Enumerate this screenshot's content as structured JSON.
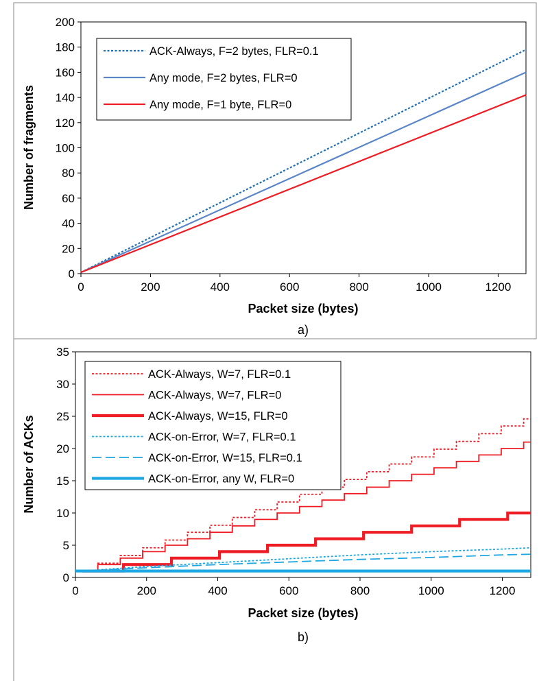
{
  "chart_data": [
    {
      "type": "line",
      "caption": "a)",
      "xlabel": "Packet size (bytes)",
      "ylabel": "Number of fragments",
      "xlim": [
        0,
        1280
      ],
      "ylim": [
        0,
        200
      ],
      "x_ticks": [
        0,
        200,
        400,
        600,
        800,
        1000,
        1200
      ],
      "y_ticks": [
        0,
        20,
        40,
        60,
        80,
        100,
        120,
        140,
        160,
        180,
        200
      ],
      "grid": false,
      "legend_position": "top-left",
      "series": [
        {
          "name": "ACK-Always, F=2 bytes, FLR=0.1",
          "color": "#1f6fb5",
          "dash": "dotted",
          "width": 2.2,
          "x": [
            0,
            1280
          ],
          "y": [
            1,
            178
          ]
        },
        {
          "name": "Any mode, F=2 bytes, FLR=0",
          "color": "#5a86c8",
          "dash": "solid",
          "width": 2.2,
          "x": [
            0,
            1280
          ],
          "y": [
            1,
            160
          ]
        },
        {
          "name": "Any mode, F=1 byte, FLR=0",
          "color": "#ee1c24",
          "dash": "solid",
          "width": 2.2,
          "x": [
            0,
            1280
          ],
          "y": [
            1,
            142
          ]
        }
      ]
    },
    {
      "type": "line",
      "caption": "b)",
      "xlabel": "Packet size (bytes)",
      "ylabel": "Number of ACKs",
      "xlim": [
        0,
        1280
      ],
      "ylim": [
        0,
        35
      ],
      "x_ticks": [
        0,
        200,
        400,
        600,
        800,
        1000,
        1200
      ],
      "y_ticks": [
        0,
        5,
        10,
        15,
        20,
        25,
        30,
        35
      ],
      "grid": false,
      "legend_position": "top-left",
      "series": [
        {
          "name": "ACK-Always, W=7, FLR=0.1",
          "color": "#ee1c24",
          "dash": "dotted",
          "width": 1.8,
          "step": true,
          "x": [
            20,
            63,
            126,
            189,
            252,
            315,
            378,
            441,
            504,
            567,
            630,
            693,
            756,
            819,
            882,
            945,
            1008,
            1071,
            1134,
            1197,
            1260,
            1280
          ],
          "y": [
            1,
            2.2,
            3.4,
            4.6,
            5.8,
            7.0,
            8.1,
            9.3,
            10.5,
            11.7,
            12.9,
            14.0,
            15.2,
            16.4,
            17.6,
            18.7,
            19.9,
            21.1,
            22.3,
            23.5,
            24.6,
            24.6
          ]
        },
        {
          "name": "ACK-Always, W=7, FLR=0",
          "color": "#ee1c24",
          "dash": "solid",
          "width": 1.8,
          "step": true,
          "x": [
            20,
            63,
            126,
            189,
            252,
            315,
            378,
            441,
            504,
            567,
            630,
            693,
            756,
            819,
            882,
            945,
            1008,
            1071,
            1134,
            1197,
            1260,
            1280
          ],
          "y": [
            1,
            2,
            3,
            4,
            5,
            6,
            7,
            8,
            9,
            10,
            11,
            12,
            13,
            14,
            15,
            16,
            17,
            18,
            19,
            20,
            21,
            21
          ]
        },
        {
          "name": "ACK-Always, W=15, FLR=0",
          "color": "#ee1c24",
          "dash": "solid",
          "width": 4.2,
          "step": true,
          "x": [
            20,
            135,
            270,
            405,
            540,
            675,
            810,
            945,
            1080,
            1215,
            1280
          ],
          "y": [
            1,
            2,
            3,
            4,
            5,
            6,
            7,
            8,
            9,
            10,
            10
          ]
        },
        {
          "name": "ACK-on-Error, W=7, FLR=0.1",
          "color": "#1ea7e1",
          "dash": "dotted",
          "width": 1.8,
          "x": [
            20,
            200,
            400,
            600,
            800,
            1000,
            1200,
            1280
          ],
          "y": [
            1,
            1.7,
            2.3,
            2.9,
            3.5,
            4.0,
            4.4,
            4.6
          ]
        },
        {
          "name": "ACK-on-Error, W=15, FLR=0.1",
          "color": "#1ea7e1",
          "dash": "dashed",
          "width": 1.8,
          "x": [
            20,
            200,
            400,
            600,
            800,
            1000,
            1200,
            1280
          ],
          "y": [
            1,
            1.5,
            2.0,
            2.4,
            2.8,
            3.1,
            3.5,
            3.6
          ]
        },
        {
          "name": "ACK-on-Error, any W, FLR=0",
          "color": "#1ea7e1",
          "dash": "solid",
          "width": 4.2,
          "x": [
            0,
            1280
          ],
          "y": [
            1,
            1
          ]
        }
      ]
    }
  ]
}
